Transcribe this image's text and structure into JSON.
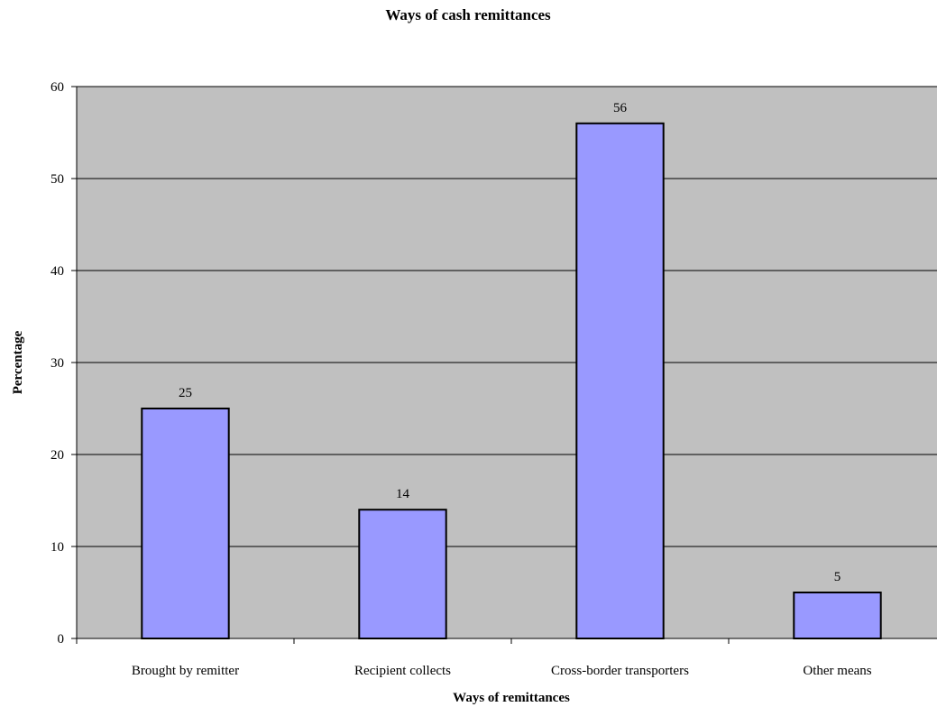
{
  "chart_data": {
    "type": "bar",
    "title": "Ways of cash remittances",
    "xlabel": "Ways of remittances",
    "ylabel": "Percentage",
    "categories": [
      "Brought by remitter",
      "Recipient collects",
      "Cross-border transporters",
      "Other means"
    ],
    "values": [
      25,
      14,
      56,
      5
    ],
    "data_labels": [
      "25",
      "14",
      "56",
      "5"
    ],
    "yticks": [
      0,
      10,
      20,
      30,
      40,
      50,
      60
    ],
    "ytick_labels": [
      "0",
      "10",
      "20",
      "30",
      "40",
      "50",
      "60"
    ],
    "ylim": [
      0,
      60
    ],
    "grid": true,
    "legend": "none",
    "colors": {
      "bar_fill": "#9999ff",
      "bar_stroke": "#000000",
      "plot_background": "#c0c0c0",
      "gridline": "#000000"
    }
  }
}
